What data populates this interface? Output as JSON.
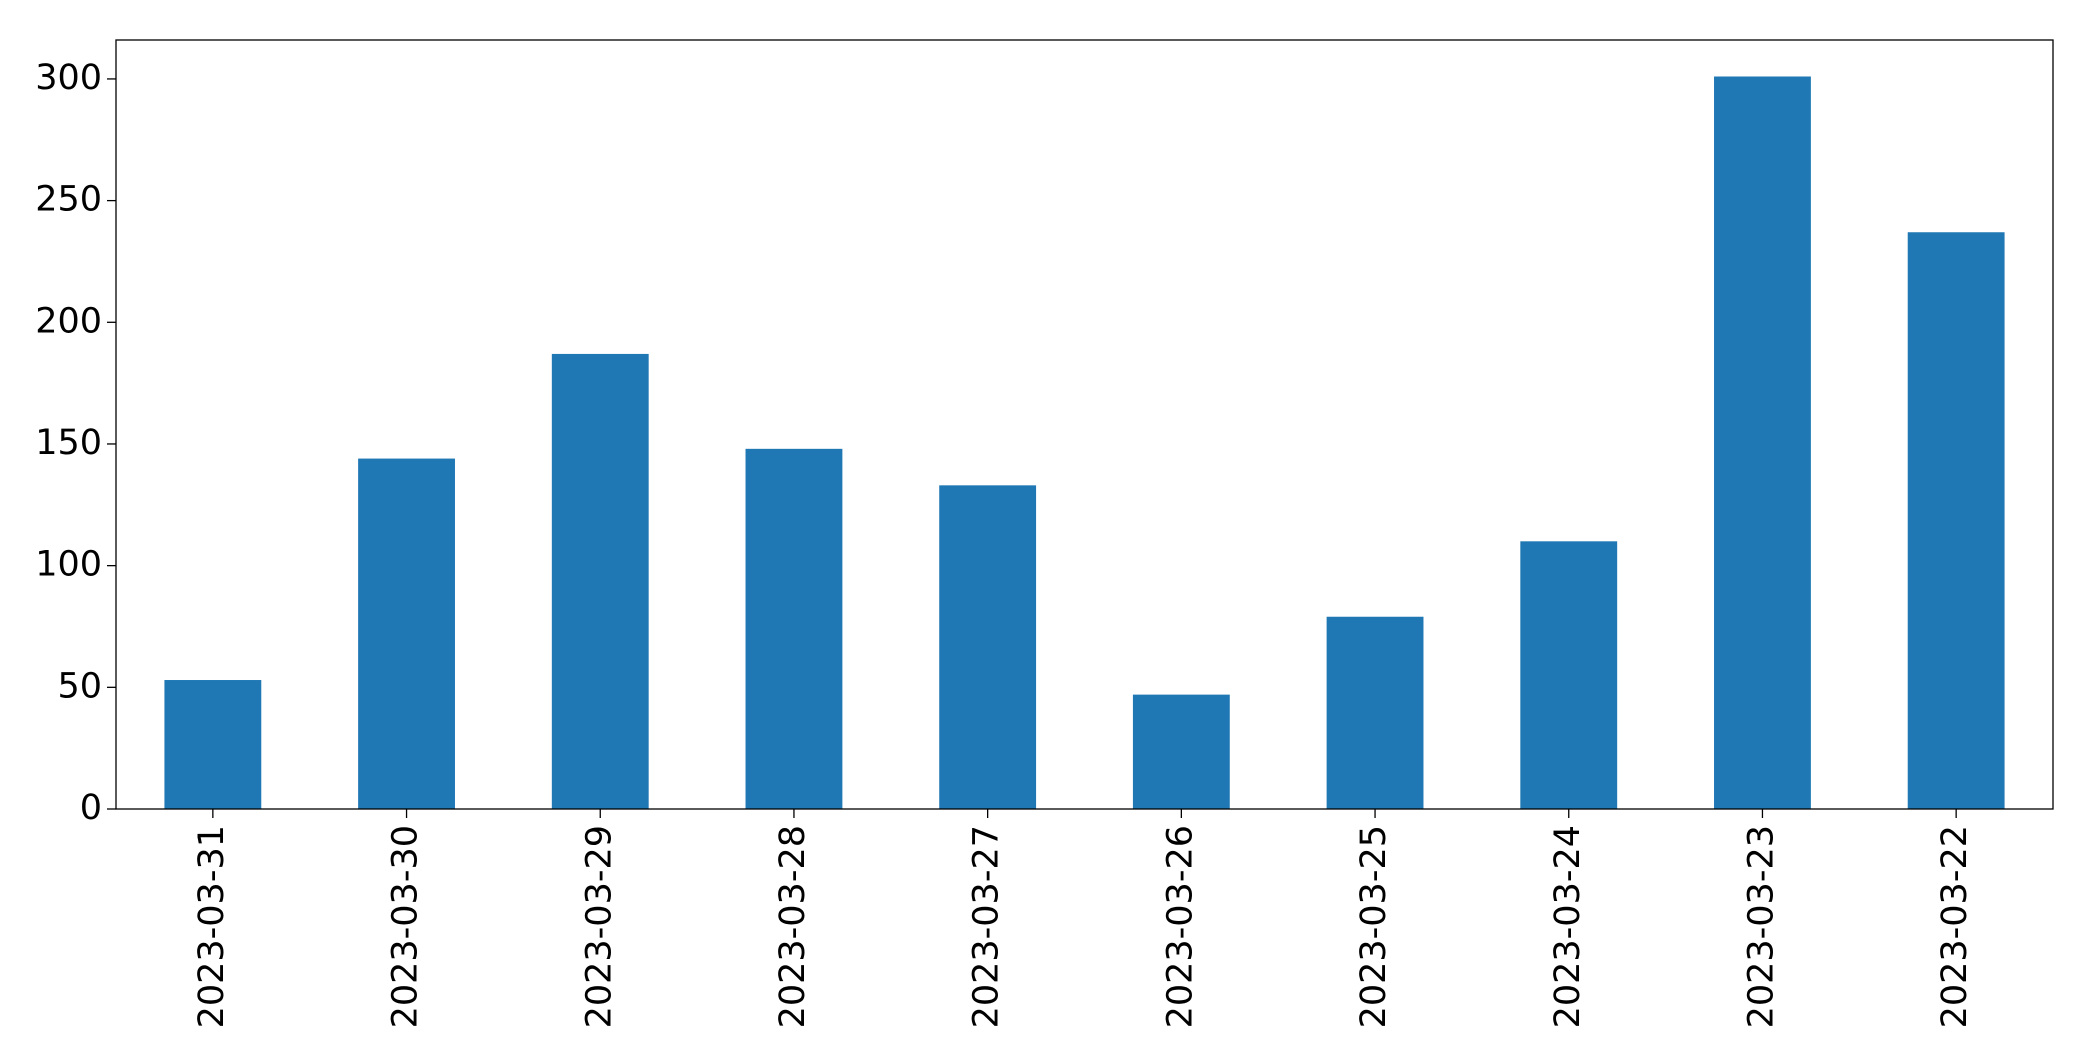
{
  "chart_data": {
    "type": "bar",
    "categories": [
      "2023-03-31",
      "2023-03-30",
      "2023-03-29",
      "2023-03-28",
      "2023-03-27",
      "2023-03-26",
      "2023-03-25",
      "2023-03-24",
      "2023-03-23",
      "2023-03-22"
    ],
    "values": [
      53,
      144,
      187,
      148,
      133,
      47,
      79,
      110,
      301,
      237
    ],
    "color": "#1f77b4",
    "ylim": [
      0,
      316
    ],
    "yticks": [
      0,
      50,
      100,
      150,
      200,
      250,
      300
    ],
    "grid": false
  }
}
